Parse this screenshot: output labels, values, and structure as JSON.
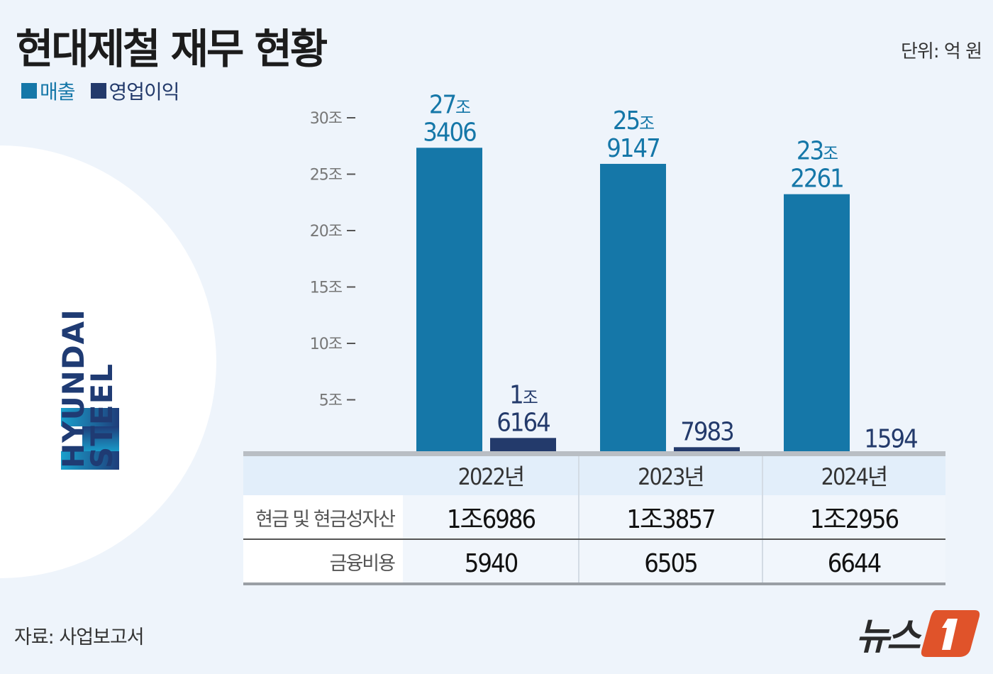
{
  "title": "현대제철 재무 현황",
  "unit": "단위: 억 원",
  "source": "자료: 사업보고서",
  "logo": {
    "company": "HYUNDAI STEEL",
    "line1": "HYUNDAI",
    "line2": "STEEL",
    "press": "뉴스1",
    "press_text": "뉴스",
    "press_num": "1"
  },
  "colors": {
    "sales": "#1577a8",
    "operating_profit": "#233a6b",
    "background": "#eef4fb",
    "press": "#e0532a"
  },
  "chart_data": {
    "type": "bar",
    "categories": [
      "2022년",
      "2023년",
      "2024년"
    ],
    "series": [
      {
        "name": "매출",
        "values": [
          273406,
          259147,
          232261
        ],
        "labels": [
          [
            "27조",
            "3406"
          ],
          [
            "25조",
            "9147"
          ],
          [
            "23조",
            "2261"
          ]
        ]
      },
      {
        "name": "영업이익",
        "values": [
          16164,
          7983,
          1594
        ],
        "labels": [
          [
            "1조",
            "6164"
          ],
          [
            "7983"
          ],
          [
            "1594"
          ]
        ]
      }
    ],
    "yticks": [
      {
        "value": 50000,
        "label": "5조"
      },
      {
        "value": 100000,
        "label": "10조"
      },
      {
        "value": 150000,
        "label": "15조"
      },
      {
        "value": 200000,
        "label": "20조"
      },
      {
        "value": 250000,
        "label": "25조"
      },
      {
        "value": 300000,
        "label": "30조"
      }
    ],
    "ylim": [
      0,
      300000
    ],
    "ylabel": "",
    "legend": "top-left",
    "grid": false
  },
  "table": {
    "columns": [
      "2022년",
      "2023년",
      "2024년"
    ],
    "rows": [
      {
        "label": "현금 및 현금성자산",
        "values": [
          "1조6986",
          "1조3857",
          "1조2956"
        ]
      },
      {
        "label": "금융비용",
        "values": [
          "5940",
          "6505",
          "6644"
        ]
      }
    ]
  }
}
